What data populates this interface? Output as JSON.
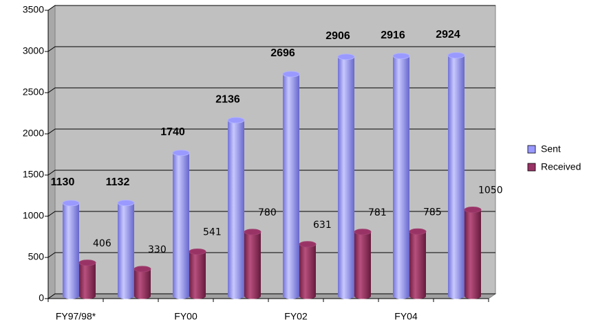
{
  "chart_data": {
    "type": "bar3d",
    "categories": [
      "FY97/98*",
      null,
      "FY00",
      null,
      "FY02",
      null,
      "FY04",
      null
    ],
    "series": [
      {
        "name": "Sent",
        "color": "#9999ff",
        "values": [
          1130,
          1132,
          1740,
          2136,
          2696,
          2906,
          2916,
          2924
        ]
      },
      {
        "name": "Received",
        "color": "#993366",
        "values": [
          406,
          330,
          541,
          780,
          631,
          781,
          785,
          1050
        ]
      }
    ],
    "ylim": [
      0,
      3500
    ],
    "yticks": [
      0,
      500,
      1000,
      1500,
      2000,
      2500,
      3000,
      3500
    ],
    "grid": true,
    "legend": "right"
  }
}
